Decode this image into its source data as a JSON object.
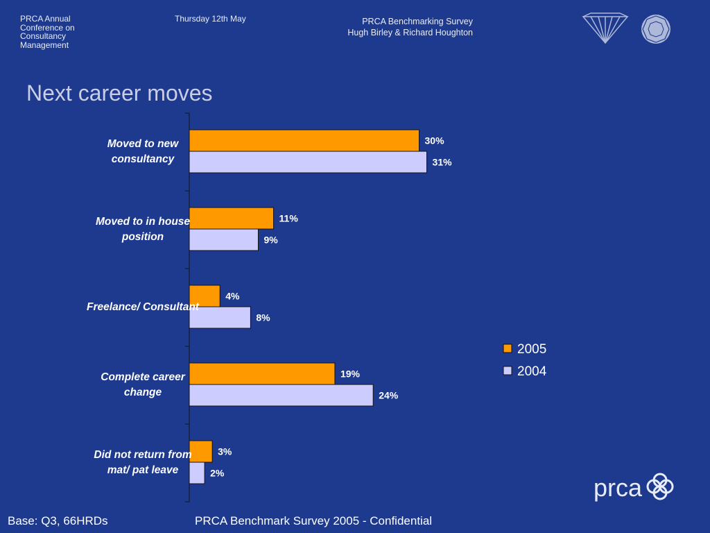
{
  "header": {
    "conference": "PRCA Annual Conference on Consultancy Management",
    "date": "Thursday 12th May",
    "survey_line1": "PRCA Benchmarking Survey",
    "survey_line2": "Hugh Birley & Richard Houghton"
  },
  "title": "Next career moves",
  "footer": {
    "base": "Base: Q3, 66HRDs",
    "confidential": "PRCA Benchmark Survey 2005 - Confidential"
  },
  "logos": {
    "brand": "prca",
    "icons": [
      "diamond-icon",
      "circle-gem-icon",
      "linked-rings-icon"
    ]
  },
  "colors": {
    "background": "#1e3a8f",
    "series_2005": "#ff9900",
    "series_2004": "#ccccff"
  },
  "chart_data": {
    "type": "bar",
    "orientation": "horizontal",
    "categories": [
      [
        "Moved to new",
        "consultancy"
      ],
      [
        "Moved to in house",
        "position"
      ],
      [
        "Freelance/ Consultant"
      ],
      [
        "Complete career",
        "change"
      ],
      [
        "Did not return from",
        "mat/ pat leave"
      ]
    ],
    "series": [
      {
        "name": "2005",
        "values": [
          30,
          11,
          4,
          19,
          3
        ],
        "labels": [
          "30%",
          "11%",
          "4%",
          "19%",
          "3%"
        ]
      },
      {
        "name": "2004",
        "values": [
          31,
          9,
          8,
          24,
          2
        ],
        "labels": [
          "31%",
          "9%",
          "8%",
          "24%",
          "2%"
        ]
      }
    ],
    "legend_position": "right",
    "xlim": [
      0,
      40
    ],
    "grid": false
  }
}
